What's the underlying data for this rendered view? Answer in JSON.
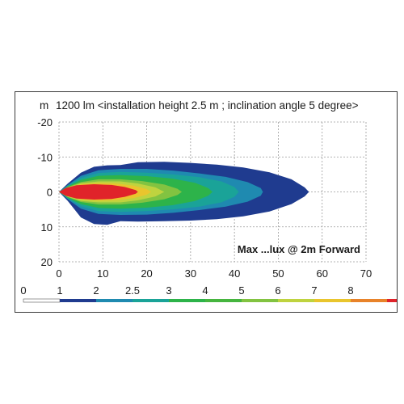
{
  "chart_data": {
    "type": "heatmap",
    "title": "1200 lm <installation height 2.5 m ; inclination angle 5 degree>",
    "ylabel": "m",
    "annotation": "Max ...lux @ 2m Forward",
    "x_ticks": [
      0,
      10,
      20,
      30,
      40,
      50,
      60,
      70
    ],
    "y_ticks": [
      -20,
      -10,
      0,
      10,
      20
    ],
    "xlim": [
      0,
      70
    ],
    "ylim": [
      -20,
      20
    ],
    "grid": true,
    "legend": {
      "unit": "lx",
      "labels": [
        "0",
        "1",
        "2",
        "2.5",
        "3",
        "4",
        "5",
        "6",
        "7",
        "8"
      ],
      "colors": [
        "#ffffff",
        "#1f3b8f",
        "#1f8ab0",
        "#1aa398",
        "#2db34a",
        "#46b53f",
        "#82c341",
        "#bfd33f",
        "#e9c52d",
        "#e8832a",
        "#e0232a"
      ]
    },
    "contours": [
      {
        "level": "1",
        "color": "#1f3b8f",
        "points": [
          [
            0,
            0
          ],
          [
            2,
            -2.4
          ],
          [
            5,
            -5.5
          ],
          [
            8,
            -7.2
          ],
          [
            11,
            -7.6
          ],
          [
            14,
            -7.7
          ],
          [
            18,
            -8.5
          ],
          [
            24,
            -8.6
          ],
          [
            30,
            -8.3
          ],
          [
            36,
            -7.8
          ],
          [
            42,
            -7
          ],
          [
            48,
            -5.6
          ],
          [
            53,
            -3.6
          ],
          [
            56,
            -1.3
          ],
          [
            57,
            0
          ],
          [
            56,
            1.3
          ],
          [
            53,
            3.5
          ],
          [
            48,
            5.6
          ],
          [
            42,
            7
          ],
          [
            36,
            7.8
          ],
          [
            30,
            8.2
          ],
          [
            24,
            8.4
          ],
          [
            18,
            8.5
          ],
          [
            14,
            8.4
          ],
          [
            11,
            9.4
          ],
          [
            8,
            9.2
          ],
          [
            5,
            7.3
          ],
          [
            2,
            2.6
          ]
        ]
      },
      {
        "level": "2",
        "color": "#1f8ab0",
        "points": [
          [
            0,
            0
          ],
          [
            2,
            -2
          ],
          [
            5,
            -4.6
          ],
          [
            9,
            -6.2
          ],
          [
            14,
            -6.6
          ],
          [
            20,
            -6.6
          ],
          [
            26,
            -6.1
          ],
          [
            32,
            -5.3
          ],
          [
            38,
            -4.3
          ],
          [
            43,
            -2.8
          ],
          [
            46,
            -1.1
          ],
          [
            46.5,
            0
          ],
          [
            46,
            1.1
          ],
          [
            43,
            2.8
          ],
          [
            38,
            4.2
          ],
          [
            32,
            5.2
          ],
          [
            26,
            6
          ],
          [
            20,
            6.5
          ],
          [
            14,
            6.6
          ],
          [
            9,
            6.3
          ],
          [
            5,
            4.8
          ],
          [
            2,
            2.1
          ]
        ]
      },
      {
        "level": "2.5",
        "color": "#1aa398",
        "points": [
          [
            0,
            0
          ],
          [
            2,
            -1.8
          ],
          [
            5,
            -4
          ],
          [
            9,
            -5.4
          ],
          [
            14,
            -5.7
          ],
          [
            20,
            -5.5
          ],
          [
            26,
            -5
          ],
          [
            32,
            -4.2
          ],
          [
            37,
            -3
          ],
          [
            40,
            -1.4
          ],
          [
            41,
            0
          ],
          [
            40,
            1.4
          ],
          [
            37,
            3
          ],
          [
            32,
            4.2
          ],
          [
            26,
            5
          ],
          [
            20,
            5.5
          ],
          [
            14,
            5.7
          ],
          [
            9,
            5.5
          ],
          [
            5,
            4.1
          ],
          [
            2,
            1.9
          ]
        ]
      },
      {
        "level": "3",
        "color": "#2db34a",
        "points": [
          [
            0,
            0
          ],
          [
            2,
            -1.6
          ],
          [
            5,
            -3.4
          ],
          [
            9,
            -4.6
          ],
          [
            14,
            -4.8
          ],
          [
            20,
            -4.5
          ],
          [
            26,
            -3.8
          ],
          [
            31,
            -2.6
          ],
          [
            34,
            -1.1
          ],
          [
            35,
            0
          ],
          [
            34,
            1.1
          ],
          [
            31,
            2.6
          ],
          [
            26,
            3.8
          ],
          [
            20,
            4.5
          ],
          [
            14,
            4.8
          ],
          [
            9,
            4.6
          ],
          [
            5,
            3.5
          ],
          [
            2,
            1.7
          ]
        ]
      },
      {
        "level": "5",
        "color": "#82c341",
        "points": [
          [
            0,
            0
          ],
          [
            2,
            -1.4
          ],
          [
            5,
            -2.8
          ],
          [
            9,
            -3.6
          ],
          [
            14,
            -3.6
          ],
          [
            19,
            -3.1
          ],
          [
            24,
            -2.1
          ],
          [
            27,
            -0.9
          ],
          [
            28,
            0
          ],
          [
            27,
            0.9
          ],
          [
            24,
            2.1
          ],
          [
            19,
            3.1
          ],
          [
            14,
            3.6
          ],
          [
            9,
            3.6
          ],
          [
            5,
            2.9
          ],
          [
            2,
            1.5
          ]
        ]
      },
      {
        "level": "6",
        "color": "#bfd33f",
        "points": [
          [
            0,
            0
          ],
          [
            2,
            -1.3
          ],
          [
            5,
            -2.5
          ],
          [
            9,
            -3
          ],
          [
            14,
            -3
          ],
          [
            18,
            -2.4
          ],
          [
            22,
            -1.3
          ],
          [
            24,
            0
          ],
          [
            22,
            1.3
          ],
          [
            18,
            2.4
          ],
          [
            14,
            3
          ],
          [
            9,
            3
          ],
          [
            5,
            2.6
          ],
          [
            2,
            1.4
          ]
        ]
      },
      {
        "level": "7",
        "color": "#e9c52d",
        "points": [
          [
            0,
            0
          ],
          [
            2,
            -1.2
          ],
          [
            5,
            -2.2
          ],
          [
            9,
            -2.5
          ],
          [
            13,
            -2.4
          ],
          [
            17,
            -1.8
          ],
          [
            20,
            -0.8
          ],
          [
            21,
            0
          ],
          [
            20,
            0.8
          ],
          [
            17,
            1.8
          ],
          [
            13,
            2.4
          ],
          [
            9,
            2.5
          ],
          [
            5,
            2.2
          ],
          [
            2,
            1.2
          ]
        ]
      },
      {
        "level": "8",
        "color": "#e0232a",
        "points": [
          [
            0,
            0
          ],
          [
            1.5,
            -1.1
          ],
          [
            4,
            -1.9
          ],
          [
            8,
            -2.2
          ],
          [
            12,
            -2
          ],
          [
            15,
            -1.4
          ],
          [
            17.5,
            -0.5
          ],
          [
            18,
            0
          ],
          [
            17.5,
            0.5
          ],
          [
            15,
            1.4
          ],
          [
            12,
            2
          ],
          [
            8,
            2.2
          ],
          [
            4,
            1.9
          ],
          [
            1.5,
            1.1
          ]
        ]
      }
    ]
  }
}
